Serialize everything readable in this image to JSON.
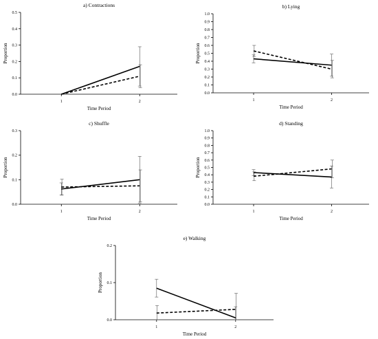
{
  "chart_data": [
    {
      "id": "a",
      "type": "line",
      "title": "a) Contractions",
      "xlabel": "Time Period",
      "ylabel": "Proportion",
      "categories": [
        "1",
        "2"
      ],
      "ylim": [
        0,
        0.5
      ],
      "yticks": [
        "0.0",
        "0.1",
        "0.2",
        "0.3",
        "0.4",
        "0.5"
      ],
      "series": [
        {
          "style": "solid",
          "values": [
            0.0,
            0.17
          ],
          "errors": [
            0.0,
            0.12
          ]
        },
        {
          "style": "dashed",
          "values": [
            0.0,
            0.11
          ],
          "errors": [
            0.0,
            0.07
          ]
        }
      ]
    },
    {
      "id": "b",
      "type": "line",
      "title": "b) Lying",
      "xlabel": "Time Period",
      "ylabel": "Proportion",
      "categories": [
        "1",
        "2"
      ],
      "ylim": [
        0,
        1.0
      ],
      "yticks": [
        "0.0",
        "0.1",
        "0.2",
        "0.3",
        "0.4",
        "0.5",
        "0.6",
        "0.7",
        "0.8",
        "0.9",
        "1.0"
      ],
      "series": [
        {
          "style": "solid",
          "values": [
            0.43,
            0.35
          ],
          "errors": [
            0.05,
            0.14
          ]
        },
        {
          "style": "dashed",
          "values": [
            0.53,
            0.3
          ],
          "errors": [
            0.07,
            0.11
          ]
        }
      ]
    },
    {
      "id": "c",
      "type": "line",
      "title": "c) Shuffle",
      "xlabel": "Time Period",
      "ylabel": "Proportion",
      "categories": [
        "1",
        "2"
      ],
      "ylim": [
        0,
        0.3
      ],
      "yticks": [
        "0.0",
        "0.1",
        "0.2",
        "0.3"
      ],
      "series": [
        {
          "style": "solid",
          "values": [
            0.062,
            0.1
          ],
          "errors": [
            0.025,
            0.095
          ]
        },
        {
          "style": "dashed",
          "values": [
            0.07,
            0.075
          ],
          "errors": [
            0.032,
            0.065
          ]
        }
      ]
    },
    {
      "id": "d",
      "type": "line",
      "title": "d) Standing",
      "xlabel": "Time Period",
      "ylabel": "Proportion",
      "categories": [
        "1",
        "2"
      ],
      "ylim": [
        0,
        1.0
      ],
      "yticks": [
        "0.0",
        "0.1",
        "0.2",
        "0.3",
        "0.4",
        "0.5",
        "0.6",
        "0.7",
        "0.8",
        "0.9",
        "1.0"
      ],
      "series": [
        {
          "style": "solid",
          "values": [
            0.43,
            0.37
          ],
          "errors": [
            0.04,
            0.15
          ]
        },
        {
          "style": "dashed",
          "values": [
            0.38,
            0.48
          ],
          "errors": [
            0.06,
            0.12
          ]
        }
      ]
    },
    {
      "id": "e",
      "type": "line",
      "title": "e) Walking",
      "xlabel": "Time Period",
      "ylabel": "Proportion",
      "categories": [
        "1",
        "2"
      ],
      "ylim": [
        0,
        0.2
      ],
      "yticks": [
        "0.0",
        "0.1",
        "0.2"
      ],
      "series": [
        {
          "style": "solid",
          "values": [
            0.085,
            0.005
          ],
          "errors": [
            0.024,
            0.03
          ]
        },
        {
          "style": "dashed",
          "values": [
            0.018,
            0.028
          ],
          "errors": [
            0.02,
            0.043
          ]
        }
      ]
    }
  ]
}
